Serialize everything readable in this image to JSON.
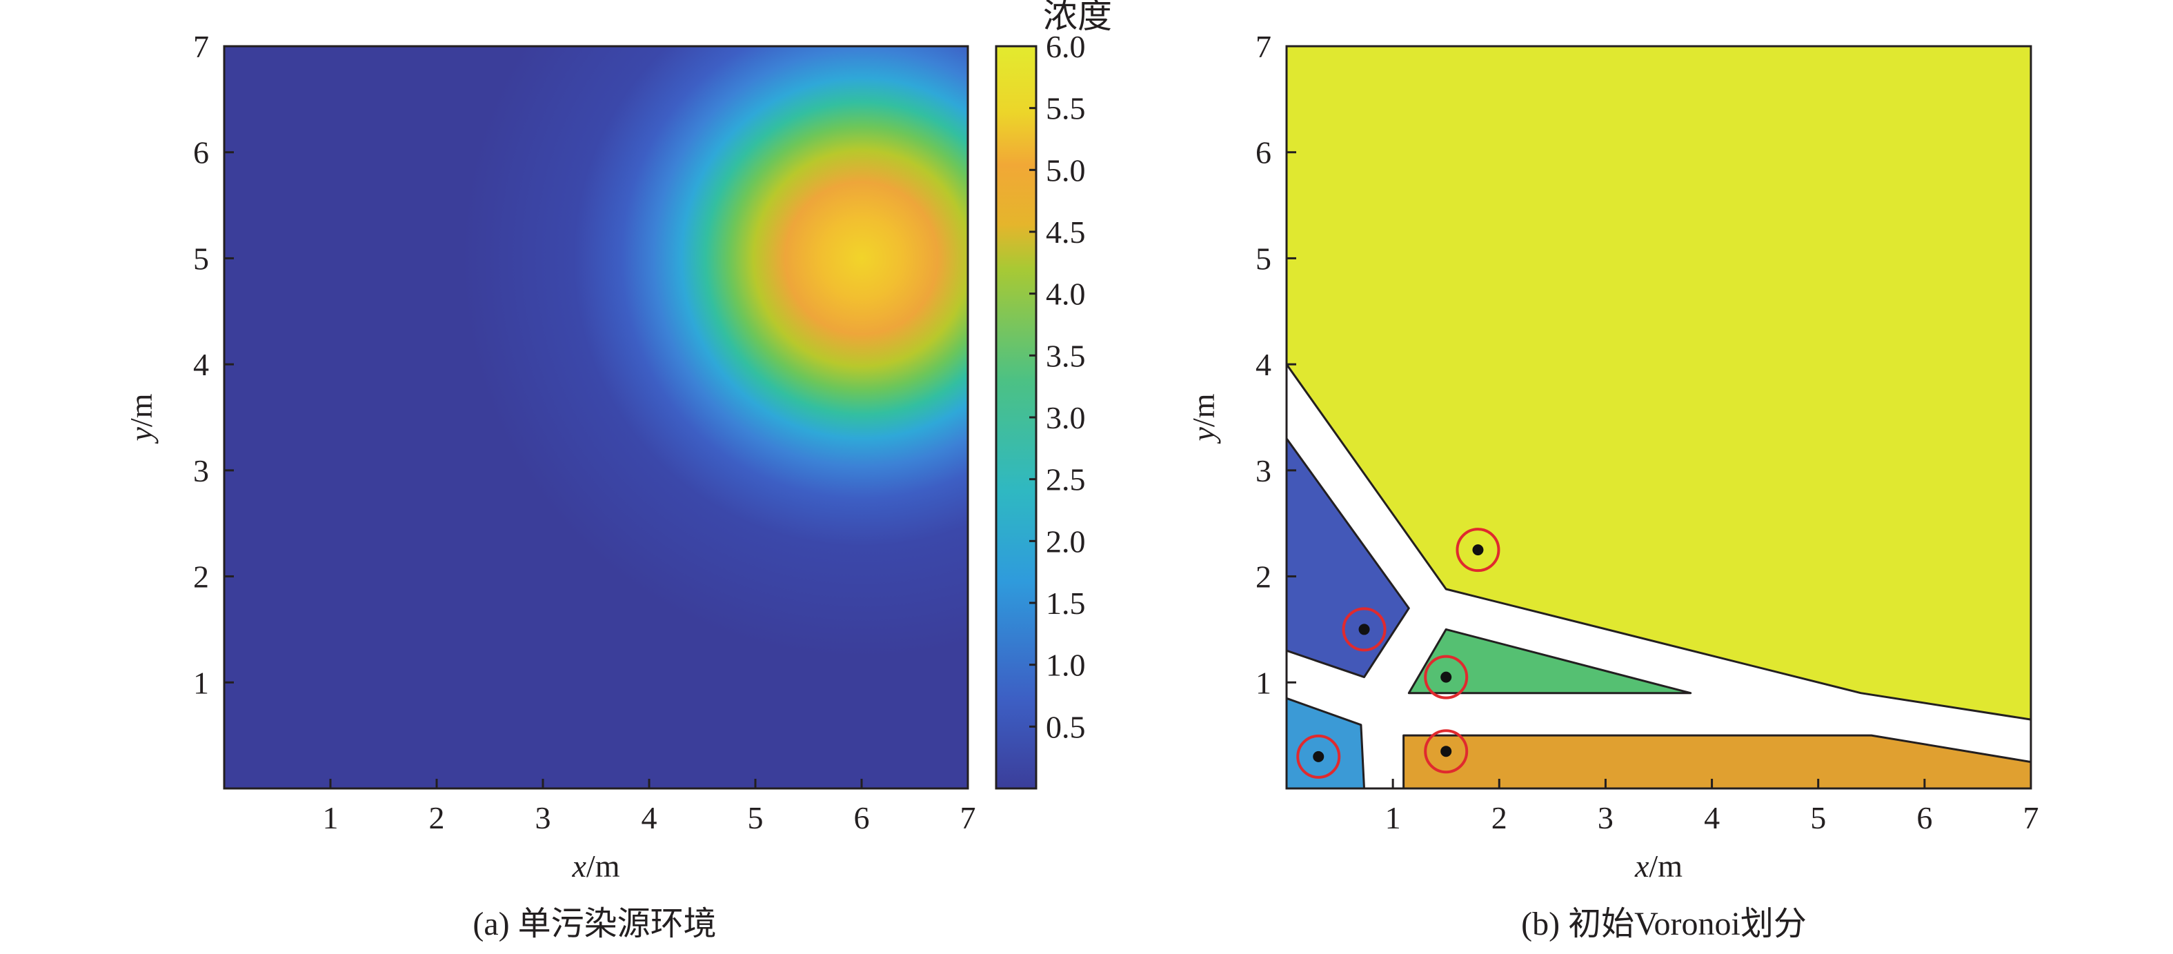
{
  "chart_data": [
    {
      "id": "a",
      "type": "heatmap",
      "caption": "(a) 单污染源环境",
      "xlabel": "x/m",
      "ylabel": "y/m",
      "xlim": [
        0,
        7
      ],
      "ylim": [
        0,
        7
      ],
      "xticks": [
        "1",
        "2",
        "3",
        "4",
        "5",
        "6",
        "7"
      ],
      "yticks": [
        "1",
        "2",
        "3",
        "4",
        "5",
        "6",
        "7"
      ],
      "grid": false,
      "source": {
        "x": 6,
        "y": 5,
        "peak": 5.0
      },
      "colorbar": {
        "title": "浓度",
        "range": [
          0,
          6.0
        ],
        "ticks": [
          "0.5",
          "1.0",
          "1.5",
          "2.0",
          "2.5",
          "3.0",
          "3.5",
          "4.0",
          "4.5",
          "5.0",
          "5.5",
          "6.0"
        ],
        "colors": [
          "#3b3e9a",
          "#3d64c8",
          "#2f9bdc",
          "#2fb8c2",
          "#3dc087",
          "#7bc84f",
          "#c6c626",
          "#f0ad2e",
          "#f0d82a",
          "#e3ea2f"
        ]
      }
    },
    {
      "id": "b",
      "type": "voronoi",
      "caption": "(b) 初始Voronoi划分",
      "xlabel": "x/m",
      "ylabel": "y/m",
      "xlim": [
        0,
        7
      ],
      "ylim": [
        0,
        7
      ],
      "xticks": [
        "1",
        "2",
        "3",
        "4",
        "5",
        "6",
        "7"
      ],
      "yticks": [
        "1",
        "2",
        "3",
        "4",
        "5",
        "6",
        "7"
      ],
      "grid": false,
      "agents": [
        {
          "x": 1.8,
          "y": 2.25,
          "color": "#e0e830"
        },
        {
          "x": 0.73,
          "y": 1.5,
          "color": "#4358b8"
        },
        {
          "x": 1.5,
          "y": 1.05,
          "color": "#55c072"
        },
        {
          "x": 0.3,
          "y": 0.3,
          "color": "#3b9ad6"
        },
        {
          "x": 1.5,
          "y": 0.35,
          "color": "#e0a030"
        }
      ],
      "cells": [
        {
          "color": "#e0e830",
          "polygon": [
            [
              0,
              7
            ],
            [
              7,
              7
            ],
            [
              7,
              0.65
            ],
            [
              5.4,
              0.9
            ],
            [
              1.5,
              1.88
            ],
            [
              0,
              4.0
            ]
          ]
        },
        {
          "color": "#4358b8",
          "polygon": [
            [
              0,
              3.3
            ],
            [
              1.15,
              1.7
            ],
            [
              0.73,
              1.05
            ],
            [
              0,
              1.3
            ]
          ]
        },
        {
          "color": "#55c072",
          "polygon": [
            [
              1.5,
              1.5
            ],
            [
              3.8,
              0.9
            ],
            [
              1.15,
              0.9
            ]
          ]
        },
        {
          "color": "#3b9ad6",
          "polygon": [
            [
              0,
              0.85
            ],
            [
              0.7,
              0.6
            ],
            [
              0.73,
              0
            ],
            [
              0,
              0
            ]
          ]
        },
        {
          "color": "#e0a030",
          "polygon": [
            [
              1.1,
              0.5
            ],
            [
              5.5,
              0.5
            ],
            [
              7,
              0.25
            ],
            [
              7,
              0
            ],
            [
              1.1,
              0
            ]
          ]
        }
      ]
    }
  ]
}
